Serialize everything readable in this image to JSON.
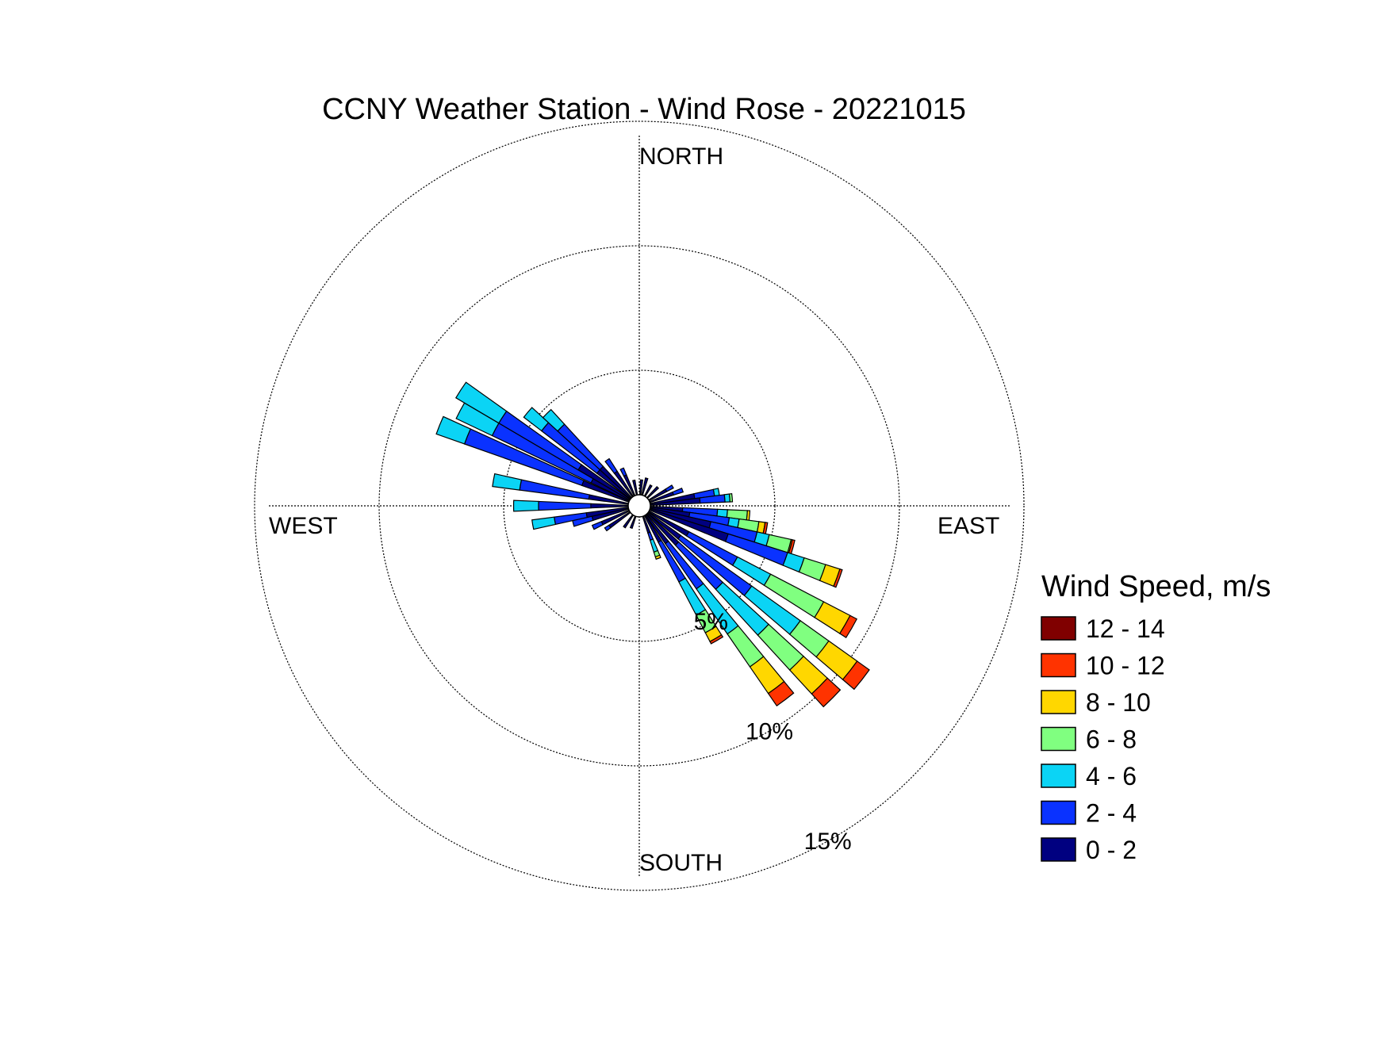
{
  "chart_data": {
    "type": "wind-rose",
    "title": "CCNY Weather Station - Wind Rose - 20221015",
    "directions": {
      "north": "NORTH",
      "east": "EAST",
      "south": "SOUTH",
      "west": "WEST"
    },
    "radial_ticks": [
      {
        "value": 5,
        "label": "5%"
      },
      {
        "value": 10,
        "label": "10%"
      },
      {
        "value": 15,
        "label": "15%"
      }
    ],
    "legend_title": "Wind Speed, m/s",
    "legend_placement": "right",
    "bins": [
      {
        "label": "0 - 2",
        "color": "#000080"
      },
      {
        "label": "2 - 4",
        "color": "#0a32ff"
      },
      {
        "label": "4 - 6",
        "color": "#0bd4f5"
      },
      {
        "label": "6 - 8",
        "color": "#80ff80"
      },
      {
        "label": "8 - 10",
        "color": "#ffd700"
      },
      {
        "label": "10 - 12",
        "color": "#ff3300"
      },
      {
        "label": "12 - 14",
        "color": "#800000"
      }
    ],
    "sector_width_deg": 5,
    "sectors": [
      {
        "dir": 5,
        "values": [
          0.6
        ]
      },
      {
        "dir": 15,
        "values": [
          0.7
        ]
      },
      {
        "dir": 30,
        "values": [
          0.5
        ]
      },
      {
        "dir": 45,
        "values": [
          0.6
        ]
      },
      {
        "dir": 60,
        "values": [
          0.8,
          0.3
        ]
      },
      {
        "dir": 70,
        "values": [
          1.0,
          0.4
        ]
      },
      {
        "dir": 80,
        "values": [
          1.8,
          0.8,
          0.2
        ]
      },
      {
        "dir": 85,
        "values": [
          2.0,
          1.0,
          0.2,
          0.1
        ]
      },
      {
        "dir": 95,
        "values": [
          1.3,
          1.4,
          0.4,
          0.8,
          0.1
        ]
      },
      {
        "dir": 100,
        "values": [
          1.6,
          1.6,
          0.4,
          0.8,
          0.25,
          0.1
        ]
      },
      {
        "dir": 105,
        "values": [
          2.5,
          1.9,
          0.5,
          0.9,
          0.05,
          0.1
        ]
      },
      {
        "dir": 110,
        "values": [
          3.3,
          2.5,
          0.7,
          0.9,
          0.6,
          0.1
        ]
      },
      {
        "dir": 120,
        "values": [
          1.8,
          2.2,
          1.5,
          2.4,
          1.2,
          0.3
        ]
      },
      {
        "dir": 128,
        "values": [
          1.6,
          3.5,
          2.4,
          1.4,
          1.4,
          0.6
        ]
      },
      {
        "dir": 135,
        "values": [
          1.7,
          2.4,
          2.5,
          1.9,
          1.3,
          0.7
        ]
      },
      {
        "dir": 143,
        "values": [
          1.4,
          2.2,
          2.2,
          1.6,
          1.3,
          0.6
        ]
      },
      {
        "dir": 150,
        "values": [
          1.2,
          1.8,
          1.5,
          0.8,
          0.4,
          0.1
        ]
      },
      {
        "dir": 160,
        "values": [
          0.7,
          0.3,
          0.5,
          0.2,
          0.1
        ]
      },
      {
        "dir": 200,
        "values": [
          0.5
        ]
      },
      {
        "dir": 215,
        "values": [
          0.6
        ]
      },
      {
        "dir": 235,
        "values": [
          1.0,
          0.2
        ]
      },
      {
        "dir": 245,
        "values": [
          1.2,
          0.4
        ]
      },
      {
        "dir": 255,
        "values": [
          1.5,
          0.8
        ]
      },
      {
        "dir": 260,
        "values": [
          1.7,
          1.3,
          0.9
        ]
      },
      {
        "dir": 270,
        "values": [
          1.5,
          2.1,
          1.0
        ]
      },
      {
        "dir": 280,
        "values": [
          1.6,
          2.8,
          1.1
        ]
      },
      {
        "dir": 292,
        "values": [
          2.0,
          5.0,
          1.2
        ]
      },
      {
        "dir": 298,
        "values": [
          1.7,
          4.4,
          1.6
        ]
      },
      {
        "dir": 303,
        "values": [
          2.4,
          3.7,
          2.0
        ]
      },
      {
        "dir": 310,
        "values": [
          1.7,
          2.8,
          0.9
        ]
      },
      {
        "dir": 315,
        "values": [
          1.7,
          2.3,
          0.8
        ]
      },
      {
        "dir": 325,
        "values": [
          1.2,
          0.6
        ]
      },
      {
        "dir": 335,
        "values": [
          0.9,
          0.3
        ]
      },
      {
        "dir": 348,
        "values": [
          0.6
        ]
      }
    ]
  }
}
